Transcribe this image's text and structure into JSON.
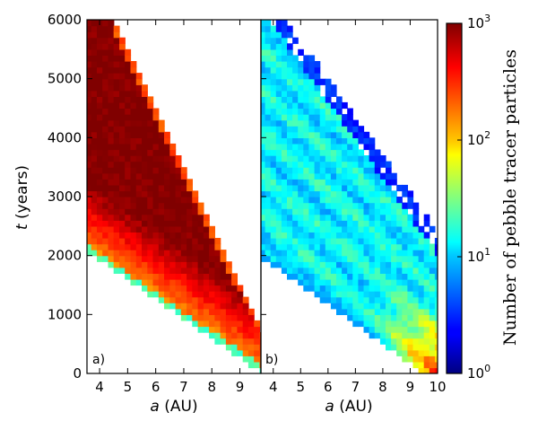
{
  "chart_data": {
    "type": "heatmap",
    "panels": [
      {
        "label": "a)",
        "xlabel_italic": "a",
        "xlabel_unit": "(AU)",
        "xlim": [
          3.55,
          9.75
        ],
        "x_ticks": [
          "4",
          "5",
          "6",
          "7",
          "8",
          "9"
        ]
      },
      {
        "label": "b)",
        "xlabel_italic": "a",
        "xlabel_unit": "(AU)",
        "xlim": [
          3.55,
          10.0
        ],
        "x_ticks": [
          "4",
          "5",
          "6",
          "7",
          "8",
          "9",
          "10"
        ]
      }
    ],
    "ylabel_italic": "t",
    "ylabel_unit": "(years)",
    "ylim": [
      0,
      6000
    ],
    "y_ticks": [
      "0",
      "1000",
      "2000",
      "3000",
      "4000",
      "5000",
      "6000"
    ],
    "colorbar": {
      "label": "Number of pebble tracer particles",
      "scale": "log",
      "range": [
        1,
        1000
      ],
      "ticks": [
        {
          "base": "10",
          "exp": "0"
        },
        {
          "base": "10",
          "exp": "1"
        },
        {
          "base": "10",
          "exp": "2"
        },
        {
          "base": "10",
          "exp": "3"
        }
      ],
      "colormap": "jet"
    },
    "grid": false
  }
}
